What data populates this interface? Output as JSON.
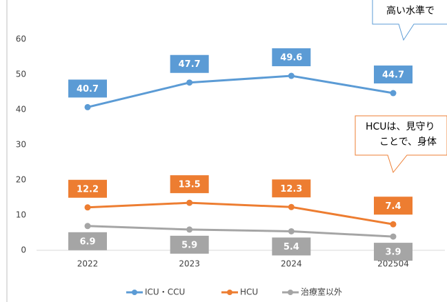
{
  "chart_data": {
    "type": "line",
    "categories": [
      "2022",
      "2023",
      "2024",
      "202504"
    ],
    "series": [
      {
        "name": "ICU・CCU",
        "color": "#5b9bd5",
        "values": [
          40.7,
          47.7,
          49.6,
          44.7
        ]
      },
      {
        "name": "HCU",
        "color": "#ed7d31",
        "values": [
          12.2,
          13.5,
          12.3,
          7.4
        ]
      },
      {
        "name": "治療室以外",
        "color": "#a5a5a5",
        "values": [
          6.9,
          5.9,
          5.4,
          3.9
        ]
      }
    ],
    "ylim": [
      0,
      60
    ],
    "yticks": [
      0,
      10,
      20,
      30,
      40,
      50,
      60
    ],
    "grid": false,
    "legend": "bottom",
    "annotations": [
      {
        "lines": [
          "高い水準で"
        ]
      },
      {
        "lines": [
          "HCUは、見守り",
          "ことで、身体"
        ]
      }
    ]
  }
}
